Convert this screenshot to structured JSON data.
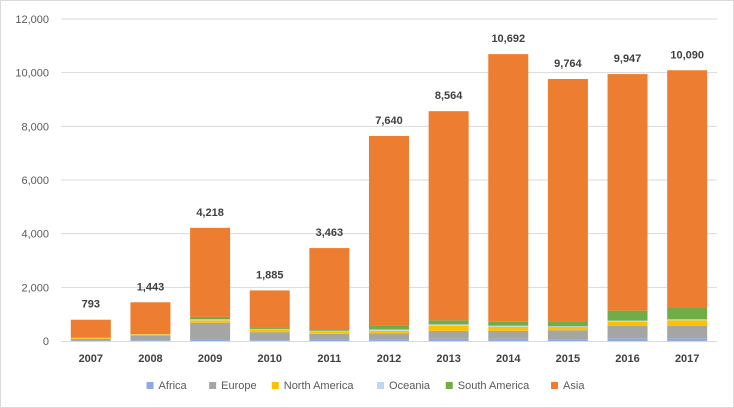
{
  "chart_data": {
    "type": "bar",
    "stacked": true,
    "categories": [
      "2007",
      "2008",
      "2009",
      "2010",
      "2011",
      "2012",
      "2013",
      "2014",
      "2015",
      "2016",
      "2017"
    ],
    "totals_labels": [
      "793",
      "1,443",
      "4,218",
      "1,885",
      "3,463",
      "7,640",
      "8,564",
      "10,692",
      "9,764",
      "9,947",
      "10,090"
    ],
    "series": [
      {
        "name": "Africa",
        "color": "#8faadc",
        "values": [
          20,
          30,
          40,
          30,
          40,
          60,
          80,
          80,
          70,
          100,
          100
        ]
      },
      {
        "name": "Europe",
        "color": "#a5a5a5",
        "values": [
          60,
          180,
          640,
          300,
          230,
          230,
          300,
          300,
          330,
          470,
          470
        ]
      },
      {
        "name": "North America",
        "color": "#ffc000",
        "values": [
          30,
          40,
          90,
          100,
          90,
          90,
          180,
          150,
          120,
          150,
          200
        ]
      },
      {
        "name": "Oceania",
        "color": "#bdd7ee",
        "values": [
          10,
          10,
          40,
          20,
          20,
          50,
          60,
          40,
          30,
          40,
          40
        ]
      },
      {
        "name": "South America",
        "color": "#70ad47",
        "values": [
          10,
          20,
          90,
          50,
          50,
          160,
          150,
          150,
          160,
          370,
          420
        ]
      },
      {
        "name": "Asia",
        "color": "#ed7d31",
        "values": [
          663,
          1163,
          3318,
          1385,
          3033,
          7050,
          7794,
          9972,
          9054,
          8817,
          8860
        ]
      }
    ],
    "ylim": [
      0,
      12000
    ],
    "yticks": [
      0,
      2000,
      4000,
      6000,
      8000,
      10000,
      12000
    ],
    "ytick_labels": [
      "0",
      "2,000",
      "4,000",
      "6,000",
      "8,000",
      "10,000",
      "12,000"
    ],
    "grid": true,
    "legend_position": "bottom",
    "title": "",
    "xlabel": "",
    "ylabel": ""
  }
}
